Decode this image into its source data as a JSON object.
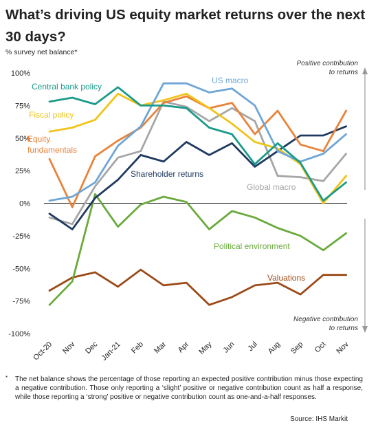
{
  "title": "What’s driving US equity market returns over the next 30 days?",
  "subtitle": "% survey net balance*",
  "footnote_marker": "*",
  "footnote": "The net balance shows the percentage of those reporting an expected positive contribution minus those expecting a negative contribution. Those only reporting a ‘slight’ positive or negative contribution count as half a response, while those reporting a ‘strong’ positive or negative contribution count as one-and-a-half responses.",
  "source": "Source: IHS Markit",
  "chart_data": {
    "type": "line",
    "categories": [
      "Oct-20",
      "Nov",
      "Dec",
      "Jan-21",
      "Feb",
      "Mar",
      "Apr",
      "May",
      "Jun",
      "Jul",
      "Aug",
      "Sep",
      "Oct",
      "Nov"
    ],
    "ylim": [
      -100,
      100
    ],
    "ytick_labels": [
      "100%",
      "75%",
      "50%",
      "25%",
      "0%",
      "-25%",
      "-50%",
      "-75%",
      "-100%"
    ],
    "yticks": [
      100,
      75,
      50,
      25,
      0,
      -25,
      -50,
      -75,
      -100
    ],
    "grid": false,
    "annotations": {
      "positive": [
        "Positive contribution",
        "to returns"
      ],
      "negative": [
        "Negative contribution",
        "to returns"
      ]
    },
    "series": [
      {
        "name": "Central bank policy",
        "color": "#1a9a8a",
        "values": [
          78,
          81,
          76,
          89,
          75,
          75,
          73,
          58,
          53,
          30,
          46,
          31,
          2,
          16
        ]
      },
      {
        "name": "US macro",
        "color": "#6ea6d6",
        "values": [
          2,
          5,
          16,
          44,
          59,
          92,
          92,
          85,
          88,
          75,
          40,
          32,
          38,
          53
        ]
      },
      {
        "name": "Fiscal policy",
        "color": "#f0c419",
        "values": [
          55,
          58,
          64,
          84,
          75,
          79,
          84,
          73,
          61,
          47,
          42,
          30,
          0,
          21
        ]
      },
      {
        "name": "Equity fundamentals",
        "label_lines": [
          "Equity",
          "fundamentals"
        ],
        "color": "#e8833a",
        "values": [
          34,
          -3,
          36,
          48,
          58,
          77,
          82,
          73,
          77,
          53,
          71,
          45,
          40,
          71
        ]
      },
      {
        "name": "Global macro",
        "color": "#a6a6a6",
        "values": [
          -11,
          -16,
          13,
          35,
          40,
          78,
          74,
          63,
          73,
          63,
          21,
          20,
          17,
          38
        ]
      },
      {
        "name": "Shareholder returns",
        "color": "#1f3a60",
        "values": [
          -8,
          -20,
          4,
          18,
          37,
          32,
          47,
          37,
          46,
          28,
          40,
          52,
          52,
          59
        ]
      },
      {
        "name": "Political environment",
        "color": "#6aaa3c",
        "values": [
          -78,
          -60,
          7,
          -18,
          -1,
          5,
          1,
          -20,
          -6,
          -11,
          -19,
          -25,
          -36,
          -23
        ]
      },
      {
        "name": "Valuations",
        "color": "#9b4a17",
        "values": [
          -67,
          -57,
          -53,
          -64,
          -51,
          -63,
          -61,
          -78,
          -72,
          -63,
          -61,
          -70,
          -55,
          -55
        ]
      }
    ]
  }
}
